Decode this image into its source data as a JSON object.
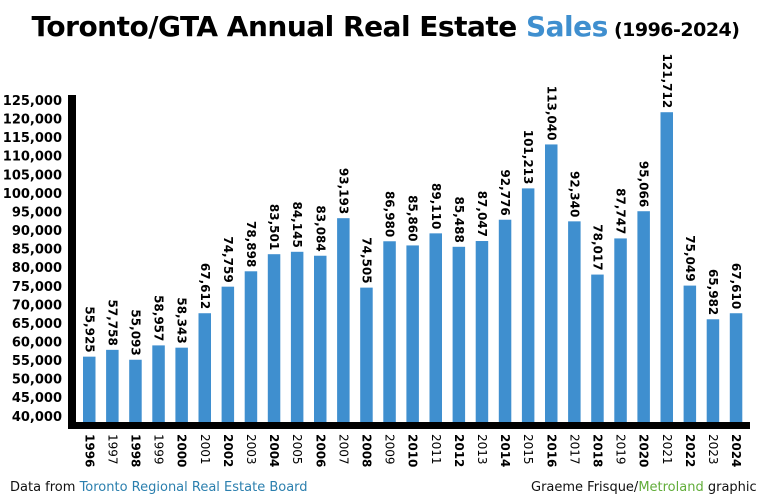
{
  "chart_data": {
    "type": "bar",
    "title_part1": "Toronto/GTA Annual Real Estate ",
    "title_accent": "Sales",
    "title_years": " (1996-2024)",
    "categories": [
      "1996",
      "1997",
      "1998",
      "1999",
      "2000",
      "2001",
      "2002",
      "2003",
      "2004",
      "2005",
      "2006",
      "2007",
      "2008",
      "2009",
      "2010",
      "2011",
      "2012",
      "2013",
      "2014",
      "2015",
      "2016",
      "2017",
      "2018",
      "2019",
      "2020",
      "2021",
      "2022",
      "2023",
      "2024"
    ],
    "values": [
      55925,
      57758,
      55093,
      58957,
      58343,
      67612,
      74759,
      78898,
      83501,
      84145,
      83084,
      93193,
      74505,
      86980,
      85860,
      89110,
      85488,
      87047,
      92776,
      101213,
      113040,
      92340,
      78017,
      87747,
      95066,
      121712,
      75049,
      65982,
      67610
    ],
    "value_labels": [
      "55,925",
      "57,758",
      "55,093",
      "58,957",
      "58,343",
      "67,612",
      "74,759",
      "78,898",
      "83,501",
      "84,145",
      "83,084",
      "93,193",
      "74,505",
      "86,980",
      "85,860",
      "89,110",
      "85,488",
      "87,047",
      "92,776",
      "101,213",
      "113,040",
      "92,340",
      "78,017",
      "87,747",
      "95,066",
      "121,712",
      "75,049",
      "65,982",
      "67,610"
    ],
    "y_ticks": [
      "40,000",
      "45,000",
      "50,000",
      "55,000",
      "60,000",
      "65,000",
      "70,000",
      "75,000",
      "80,000",
      "85,000",
      "90,000",
      "95,000",
      "100,000",
      "105,000",
      "110,000",
      "115,000",
      "120,000",
      "125,000"
    ],
    "ylim": [
      37800,
      125000
    ],
    "grid": false,
    "legend": "none",
    "colors": {
      "bar": "#3f8fcf",
      "accent": "#3f8fcf",
      "source_link": "#2b7fae",
      "metroland": "#62ad3a",
      "axis": "#000000"
    }
  },
  "footer": {
    "source_prefix": "Data from ",
    "source_name": "Toronto Regional Real Estate Board",
    "credit_name": "Graeme Frisque/",
    "credit_brand": "Metroland",
    "credit_suffix": " graphic"
  }
}
